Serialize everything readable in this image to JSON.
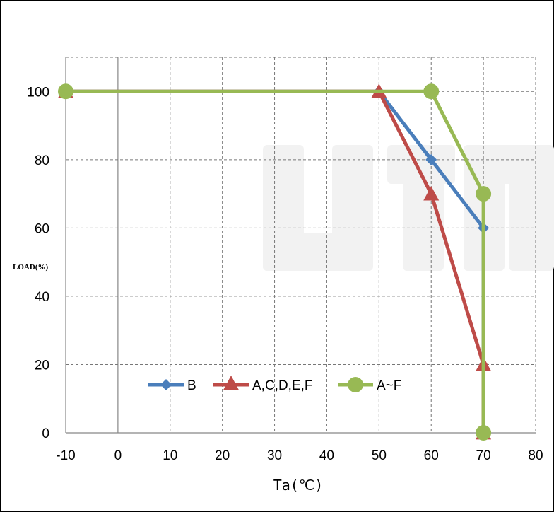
{
  "chart_data": {
    "type": "line",
    "xlabel": "Ta(℃)",
    "ylabel": "LOAD(%)",
    "xlim": [
      -10,
      80
    ],
    "ylim": [
      0,
      100
    ],
    "x_ticks": [
      "-10",
      "0",
      "10",
      "20",
      "30",
      "40",
      "50",
      "60",
      "70",
      "80"
    ],
    "y_ticks": [
      "0",
      "20",
      "40",
      "60",
      "80",
      "100"
    ],
    "grid": true,
    "legend_position": "bottom-center",
    "series": [
      {
        "name": "B",
        "color": "#4A7EBB",
        "marker": "diamond",
        "points": [
          [
            -10,
            100
          ],
          [
            50,
            100
          ],
          [
            60,
            80
          ],
          [
            70,
            60
          ],
          [
            70,
            0
          ]
        ]
      },
      {
        "name": "A,C,D,E,F",
        "color": "#BE4B48",
        "marker": "triangle",
        "points": [
          [
            -10,
            100
          ],
          [
            50,
            100
          ],
          [
            60,
            70
          ],
          [
            70,
            20
          ],
          [
            70,
            0
          ]
        ]
      },
      {
        "name": "A~F",
        "color": "#98B954",
        "marker": "circle",
        "points": [
          [
            -10,
            100
          ],
          [
            60,
            100
          ],
          [
            70,
            70
          ],
          [
            70,
            0
          ]
        ]
      }
    ]
  }
}
